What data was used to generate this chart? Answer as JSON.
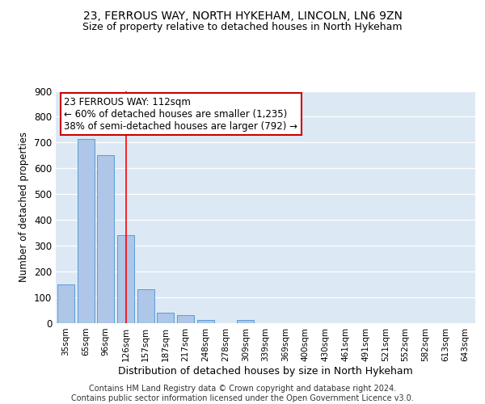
{
  "title1": "23, FERROUS WAY, NORTH HYKEHAM, LINCOLN, LN6 9ZN",
  "title2": "Size of property relative to detached houses in North Hykeham",
  "xlabel": "Distribution of detached houses by size in North Hykeham",
  "ylabel": "Number of detached properties",
  "categories": [
    "35sqm",
    "65sqm",
    "96sqm",
    "126sqm",
    "157sqm",
    "187sqm",
    "217sqm",
    "248sqm",
    "278sqm",
    "309sqm",
    "339sqm",
    "369sqm",
    "400sqm",
    "430sqm",
    "461sqm",
    "491sqm",
    "521sqm",
    "552sqm",
    "582sqm",
    "613sqm",
    "643sqm"
  ],
  "values": [
    150,
    715,
    650,
    340,
    130,
    42,
    32,
    12,
    0,
    12,
    0,
    0,
    0,
    0,
    0,
    0,
    0,
    0,
    0,
    0,
    0
  ],
  "bar_color": "#aec6e8",
  "bar_edge_color": "#5b9bd5",
  "red_line_x": 3.0,
  "annotation_text": "23 FERROUS WAY: 112sqm\n← 60% of detached houses are smaller (1,235)\n38% of semi-detached houses are larger (792) →",
  "annotation_box_color": "#ffffff",
  "annotation_box_edge": "#cc0000",
  "ylim": [
    0,
    900
  ],
  "yticks": [
    0,
    100,
    200,
    300,
    400,
    500,
    600,
    700,
    800,
    900
  ],
  "footer": "Contains HM Land Registry data © Crown copyright and database right 2024.\nContains public sector information licensed under the Open Government Licence v3.0.",
  "background_color": "#dce9f5",
  "grid_color": "#ffffff",
  "title1_fontsize": 10,
  "title2_fontsize": 9,
  "xlabel_fontsize": 9,
  "ylabel_fontsize": 8.5,
  "footer_fontsize": 7
}
